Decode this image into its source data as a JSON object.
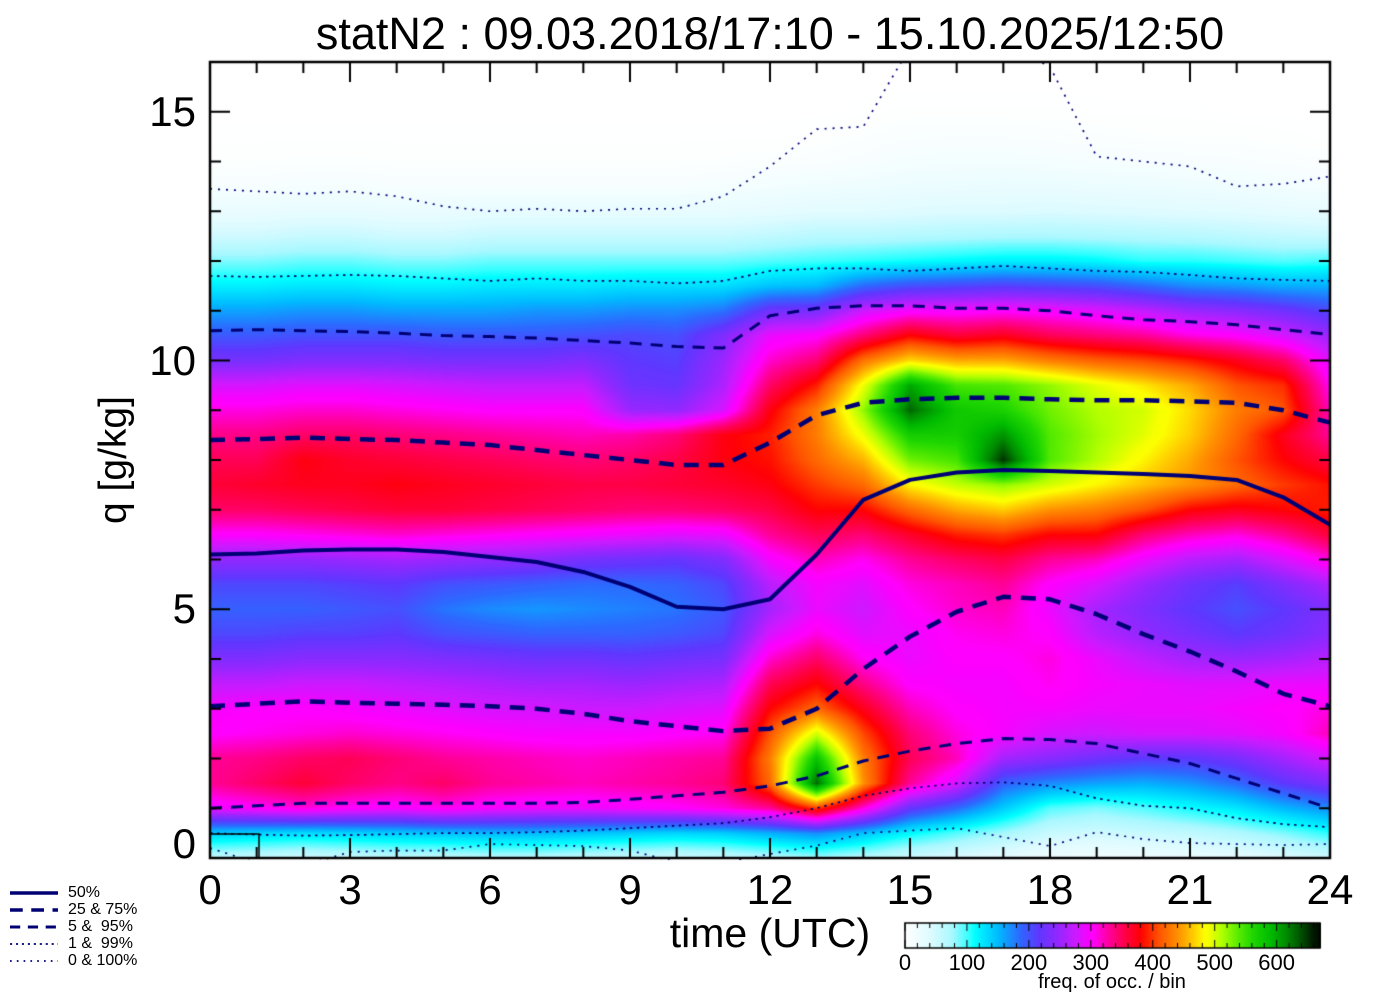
{
  "chart_data": {
    "type": "heatmap",
    "title": "statN2 : 09.03.2018/17:10 - 15.10.2025/12:50",
    "xlabel": "time (UTC)",
    "ylabel": "q [g/kg]",
    "xlim": [
      0,
      24
    ],
    "ylim": [
      0,
      16
    ],
    "x_ticks": [
      0,
      3,
      6,
      9,
      12,
      15,
      18,
      21,
      24
    ],
    "y_ticks": [
      0,
      5,
      10,
      15
    ],
    "x_minor_step": 1,
    "y_minor_step": 1,
    "grid_on": false,
    "hours": [
      0,
      1,
      2,
      3,
      4,
      5,
      6,
      7,
      8,
      9,
      10,
      11,
      12,
      13,
      14,
      15,
      16,
      17,
      18,
      19,
      20,
      21,
      22,
      23,
      24
    ],
    "q_bin_step": 0.5,
    "freq_units": "freq. of occ. / bin",
    "freq_grid": [
      [
        60,
        140,
        290,
        330,
        330,
        300,
        295,
        270,
        235,
        205,
        190,
        205,
        245,
        300,
        345,
        360,
        350,
        335,
        310,
        280,
        230,
        195,
        160,
        120,
        85,
        50,
        25,
        10,
        3,
        1,
        0,
        0,
        0
      ],
      [
        55,
        135,
        300,
        345,
        335,
        305,
        300,
        270,
        235,
        205,
        190,
        205,
        245,
        300,
        345,
        365,
        350,
        335,
        310,
        280,
        230,
        195,
        160,
        120,
        85,
        50,
        25,
        10,
        3,
        1,
        0,
        0,
        0
      ],
      [
        50,
        130,
        310,
        360,
        345,
        310,
        300,
        275,
        240,
        210,
        190,
        205,
        245,
        305,
        350,
        370,
        375,
        345,
        315,
        285,
        235,
        200,
        165,
        125,
        90,
        55,
        28,
        12,
        4,
        1,
        0,
        0,
        0
      ],
      [
        55,
        135,
        300,
        345,
        350,
        315,
        295,
        275,
        240,
        210,
        195,
        210,
        250,
        310,
        355,
        370,
        365,
        345,
        315,
        285,
        235,
        200,
        165,
        125,
        90,
        55,
        28,
        12,
        4,
        1,
        0,
        0,
        0
      ],
      [
        60,
        140,
        295,
        335,
        340,
        310,
        290,
        270,
        240,
        215,
        200,
        215,
        255,
        315,
        360,
        375,
        360,
        340,
        310,
        280,
        235,
        200,
        160,
        120,
        85,
        50,
        25,
        10,
        3,
        1,
        0,
        0,
        0
      ],
      [
        60,
        145,
        305,
        345,
        330,
        305,
        285,
        265,
        235,
        200,
        180,
        200,
        250,
        310,
        360,
        370,
        355,
        335,
        305,
        275,
        230,
        195,
        160,
        120,
        85,
        50,
        25,
        10,
        3,
        1,
        0,
        0,
        0
      ],
      [
        65,
        150,
        295,
        330,
        325,
        300,
        280,
        260,
        230,
        195,
        170,
        195,
        245,
        305,
        355,
        365,
        350,
        330,
        300,
        270,
        230,
        195,
        160,
        125,
        90,
        55,
        28,
        10,
        3,
        1,
        0,
        0,
        0
      ],
      [
        65,
        150,
        290,
        325,
        320,
        295,
        280,
        255,
        225,
        190,
        165,
        190,
        240,
        300,
        350,
        360,
        345,
        325,
        300,
        270,
        230,
        195,
        165,
        125,
        90,
        55,
        28,
        10,
        3,
        1,
        0,
        0,
        0
      ],
      [
        60,
        145,
        290,
        320,
        315,
        295,
        275,
        255,
        225,
        190,
        170,
        185,
        230,
        295,
        345,
        355,
        340,
        320,
        300,
        270,
        235,
        200,
        165,
        125,
        90,
        55,
        28,
        10,
        3,
        1,
        0,
        0,
        0
      ],
      [
        55,
        140,
        295,
        325,
        320,
        295,
        275,
        250,
        220,
        190,
        175,
        185,
        225,
        290,
        340,
        355,
        345,
        325,
        250,
        225,
        215,
        205,
        170,
        130,
        90,
        55,
        28,
        10,
        3,
        1,
        0,
        0,
        0
      ],
      [
        50,
        135,
        300,
        330,
        325,
        300,
        280,
        255,
        225,
        195,
        180,
        190,
        220,
        285,
        340,
        360,
        355,
        340,
        245,
        220,
        210,
        200,
        170,
        130,
        90,
        55,
        28,
        10,
        3,
        1,
        0,
        0,
        0
      ],
      [
        55,
        140,
        310,
        340,
        330,
        305,
        285,
        260,
        230,
        205,
        195,
        205,
        235,
        290,
        345,
        365,
        375,
        375,
        280,
        260,
        250,
        235,
        180,
        130,
        90,
        55,
        28,
        12,
        4,
        1,
        0,
        0,
        0
      ],
      [
        65,
        155,
        330,
        420,
        430,
        410,
        380,
        350,
        315,
        280,
        255,
        265,
        295,
        330,
        355,
        375,
        385,
        390,
        375,
        345,
        315,
        290,
        225,
        145,
        95,
        60,
        30,
        15,
        5,
        1,
        0,
        0,
        0
      ],
      [
        75,
        170,
        400,
        630,
        580,
        500,
        420,
        380,
        345,
        310,
        290,
        295,
        320,
        350,
        380,
        400,
        420,
        430,
        430,
        390,
        340,
        300,
        230,
        150,
        100,
        65,
        35,
        18,
        6,
        2,
        0,
        0,
        0
      ],
      [
        65,
        145,
        310,
        440,
        430,
        405,
        370,
        335,
        305,
        285,
        275,
        285,
        305,
        340,
        380,
        420,
        455,
        490,
        520,
        490,
        425,
        340,
        275,
        185,
        105,
        65,
        35,
        20,
        9,
        4,
        1,
        0,
        0
      ],
      [
        50,
        115,
        220,
        330,
        350,
        340,
        320,
        300,
        290,
        290,
        300,
        310,
        330,
        365,
        420,
        480,
        530,
        570,
        630,
        600,
        470,
        380,
        295,
        200,
        110,
        68,
        38,
        23,
        13,
        7,
        2,
        0,
        0
      ],
      [
        40,
        95,
        185,
        280,
        320,
        310,
        300,
        295,
        300,
        305,
        315,
        320,
        345,
        390,
        450,
        505,
        545,
        570,
        575,
        545,
        450,
        360,
        295,
        205,
        115,
        70,
        40,
        24,
        14,
        7,
        2,
        0,
        0
      ],
      [
        30,
        75,
        140,
        190,
        255,
        295,
        295,
        295,
        300,
        310,
        320,
        330,
        355,
        400,
        465,
        520,
        650,
        610,
        565,
        540,
        450,
        370,
        300,
        210,
        120,
        72,
        40,
        25,
        14,
        7,
        2,
        0,
        0
      ],
      [
        20,
        55,
        95,
        170,
        240,
        280,
        295,
        305,
        310,
        300,
        290,
        300,
        330,
        380,
        440,
        500,
        540,
        540,
        530,
        520,
        430,
        350,
        295,
        205,
        120,
        72,
        42,
        25,
        13,
        6,
        2,
        0,
        0
      ],
      [
        15,
        50,
        85,
        160,
        225,
        275,
        290,
        295,
        290,
        265,
        255,
        280,
        320,
        380,
        430,
        480,
        510,
        515,
        510,
        495,
        415,
        340,
        285,
        200,
        115,
        70,
        40,
        23,
        11,
        5,
        1,
        0,
        0
      ],
      [
        20,
        55,
        95,
        155,
        215,
        280,
        290,
        290,
        270,
        245,
        235,
        250,
        290,
        340,
        410,
        460,
        480,
        495,
        500,
        475,
        405,
        330,
        270,
        185,
        105,
        68,
        38,
        22,
        10,
        4,
        1,
        0,
        0
      ],
      [
        25,
        60,
        110,
        165,
        215,
        280,
        290,
        285,
        255,
        230,
        215,
        225,
        265,
        320,
        380,
        440,
        450,
        465,
        470,
        450,
        390,
        310,
        250,
        170,
        105,
        66,
        36,
        20,
        9,
        3,
        1,
        0,
        0
      ],
      [
        30,
        70,
        125,
        185,
        230,
        285,
        295,
        285,
        250,
        215,
        200,
        210,
        255,
        310,
        370,
        420,
        410,
        420,
        430,
        410,
        370,
        300,
        240,
        165,
        100,
        62,
        34,
        18,
        8,
        3,
        0,
        0,
        0
      ],
      [
        40,
        85,
        150,
        215,
        255,
        295,
        300,
        290,
        255,
        225,
        215,
        235,
        280,
        330,
        380,
        400,
        380,
        370,
        410,
        395,
        345,
        280,
        225,
        155,
        95,
        58,
        30,
        15,
        6,
        2,
        0,
        0,
        0
      ],
      [
        50,
        105,
        170,
        235,
        280,
        320,
        310,
        290,
        265,
        240,
        235,
        260,
        310,
        360,
        390,
        385,
        355,
        330,
        320,
        305,
        285,
        250,
        205,
        155,
        100,
        55,
        28,
        12,
        5,
        1,
        0,
        0,
        0
      ]
    ],
    "contours": [
      {
        "name": "p0",
        "percentile": 0,
        "style": "dot2",
        "values": [
          0.2,
          -0.1,
          -0.15,
          0.12,
          0.15,
          0.15,
          0.28,
          0.26,
          0.24,
          0.15,
          -0.08,
          -0.1,
          0.08,
          0.25,
          0.5,
          0.55,
          0.6,
          0.42,
          0.24,
          0.52,
          0.38,
          0.3,
          0.28,
          0.26,
          0.28
        ]
      },
      {
        "name": "p1",
        "percentile": 1,
        "style": "dot1",
        "values": [
          0.5,
          0.47,
          0.45,
          0.46,
          0.48,
          0.5,
          0.5,
          0.52,
          0.55,
          0.6,
          0.65,
          0.7,
          0.82,
          1.0,
          1.25,
          1.4,
          1.5,
          1.52,
          1.45,
          1.2,
          1.05,
          1.0,
          0.8,
          0.68,
          0.62
        ]
      },
      {
        "name": "p5",
        "percentile": 5,
        "style": "dash2",
        "values": [
          1.0,
          1.05,
          1.1,
          1.1,
          1.1,
          1.1,
          1.1,
          1.1,
          1.12,
          1.18,
          1.25,
          1.32,
          1.45,
          1.65,
          1.95,
          2.15,
          2.3,
          2.4,
          2.38,
          2.3,
          2.1,
          1.9,
          1.6,
          1.3,
          1.0
        ]
      },
      {
        "name": "p25",
        "percentile": 25,
        "style": "dash1",
        "values": [
          3.05,
          3.1,
          3.15,
          3.12,
          3.1,
          3.08,
          3.05,
          3.0,
          2.9,
          2.75,
          2.65,
          2.55,
          2.6,
          3.0,
          3.8,
          4.45,
          4.95,
          5.25,
          5.2,
          4.9,
          4.5,
          4.15,
          3.75,
          3.3,
          3.05
        ]
      },
      {
        "name": "p50",
        "percentile": 50,
        "style": "solid",
        "values": [
          6.1,
          6.12,
          6.18,
          6.2,
          6.2,
          6.15,
          6.05,
          5.95,
          5.75,
          5.45,
          5.05,
          5.0,
          5.2,
          6.1,
          7.2,
          7.6,
          7.75,
          7.8,
          7.78,
          7.75,
          7.72,
          7.68,
          7.6,
          7.25,
          6.7
        ]
      },
      {
        "name": "p75",
        "percentile": 75,
        "style": "dash1",
        "values": [
          8.4,
          8.42,
          8.45,
          8.42,
          8.4,
          8.35,
          8.3,
          8.2,
          8.1,
          8.0,
          7.9,
          7.9,
          8.35,
          8.9,
          9.15,
          9.22,
          9.25,
          9.25,
          9.22,
          9.2,
          9.2,
          9.18,
          9.15,
          9.0,
          8.75
        ]
      },
      {
        "name": "p95",
        "percentile": 95,
        "style": "dash2",
        "values": [
          10.6,
          10.62,
          10.6,
          10.58,
          10.55,
          10.5,
          10.48,
          10.45,
          10.4,
          10.35,
          10.28,
          10.25,
          10.9,
          11.05,
          11.1,
          11.1,
          11.05,
          11.05,
          11.0,
          10.9,
          10.82,
          10.78,
          10.72,
          10.62,
          10.52
        ]
      },
      {
        "name": "p99",
        "percentile": 99,
        "style": "dot1",
        "values": [
          11.7,
          11.68,
          11.7,
          11.72,
          11.7,
          11.65,
          11.6,
          11.65,
          11.6,
          11.6,
          11.55,
          11.6,
          11.8,
          11.85,
          11.85,
          11.8,
          11.85,
          11.9,
          11.85,
          11.8,
          11.78,
          11.72,
          11.65,
          11.62,
          11.6
        ]
      },
      {
        "name": "p100",
        "percentile": 100,
        "style": "dot2",
        "values": [
          13.45,
          13.4,
          13.35,
          13.4,
          13.3,
          13.1,
          13.0,
          13.05,
          13.0,
          13.05,
          13.05,
          13.3,
          13.9,
          14.65,
          14.7,
          16.3,
          16.6,
          16.4,
          15.9,
          14.1,
          14.0,
          13.9,
          13.5,
          13.55,
          13.7
        ]
      }
    ],
    "contour_styles": {
      "solid": {
        "dash": [],
        "lw": 4
      },
      "dash1": {
        "dash": [
          15,
          10
        ],
        "lw": 4.5
      },
      "dash2": {
        "dash": [
          12,
          9
        ],
        "lw": 3
      },
      "dot1": {
        "dash": [
          2.5,
          4.5
        ],
        "lw": 1.7
      },
      "dot2": {
        "dash": [
          2,
          6
        ],
        "lw": 1.7
      }
    },
    "legend": [
      {
        "label": "50%",
        "style": "solid"
      },
      {
        "label": "25 & 75%",
        "style": "dash1"
      },
      {
        "label": "5 &  95%",
        "style": "dash2"
      },
      {
        "label": "1 &  99%",
        "style": "dot1"
      },
      {
        "label": "0 & 100%",
        "style": "dot2"
      }
    ],
    "colorbar": {
      "label": "freq. of occ. / bin",
      "ticks": [
        0,
        100,
        200,
        300,
        400,
        500,
        600
      ],
      "minor_step": 20,
      "vmax": 670
    },
    "colors": {
      "contour": "#000075",
      "frame": "#000000",
      "background": "#ffffff",
      "colormap_stops": [
        [
          0,
          255,
          255,
          255
        ],
        [
          40,
          222,
          251,
          255
        ],
        [
          75,
          170,
          248,
          255
        ],
        [
          105,
          40,
          255,
          255
        ],
        [
          112,
          0,
          255,
          255
        ],
        [
          150,
          0,
          186,
          255
        ],
        [
          185,
          45,
          105,
          255
        ],
        [
          215,
          95,
          55,
          255
        ],
        [
          245,
          145,
          40,
          255
        ],
        [
          275,
          205,
          25,
          255
        ],
        [
          298,
          252,
          0,
          255
        ],
        [
          303,
          255,
          0,
          252
        ],
        [
          330,
          255,
          0,
          150
        ],
        [
          355,
          255,
          0,
          70
        ],
        [
          378,
          255,
          0,
          8
        ],
        [
          383,
          255,
          10,
          0
        ],
        [
          410,
          255,
          85,
          0
        ],
        [
          440,
          255,
          145,
          0
        ],
        [
          465,
          255,
          205,
          0
        ],
        [
          483,
          252,
          255,
          0
        ],
        [
          488,
          248,
          255,
          0
        ],
        [
          510,
          180,
          255,
          0
        ],
        [
          535,
          95,
          238,
          0
        ],
        [
          560,
          32,
          215,
          0
        ],
        [
          590,
          0,
          186,
          0
        ],
        [
          615,
          0,
          138,
          0
        ],
        [
          640,
          0,
          77,
          0
        ],
        [
          658,
          0,
          26,
          0
        ],
        [
          670,
          0,
          10,
          0
        ]
      ]
    },
    "corner_box": {
      "hours": [
        0,
        1.05
      ],
      "q": [
        0,
        0.48
      ]
    }
  }
}
